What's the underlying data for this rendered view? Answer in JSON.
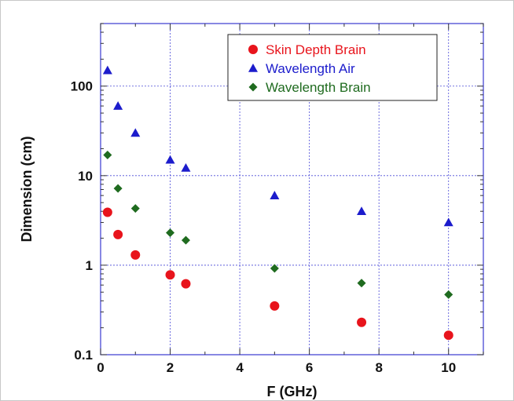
{
  "chart_data": {
    "type": "scatter",
    "title": "",
    "xlabel": "F (GHz)",
    "ylabel": "Dimension (cm)",
    "xlim": [
      0,
      11
    ],
    "ylim": [
      0.1,
      500
    ],
    "yscale": "log",
    "x_ticks": [
      0,
      2,
      4,
      6,
      8,
      10
    ],
    "x_tick_labels": [
      "0",
      "2",
      "4",
      "6",
      "8",
      "10"
    ],
    "y_ticks": [
      0.1,
      1,
      10,
      100
    ],
    "y_tick_labels": [
      "0.1",
      "1",
      "10",
      "100"
    ],
    "grid": true,
    "legend_position": "top-right",
    "series": [
      {
        "name": "Skin Depth Brain",
        "marker": "circle",
        "color": "#e8141c",
        "x": [
          0.2,
          0.5,
          1,
          2,
          2.45,
          5,
          7.5,
          10
        ],
        "y": [
          3.9,
          2.2,
          1.3,
          0.78,
          0.62,
          0.35,
          0.23,
          0.165
        ]
      },
      {
        "name": "Wavelength Air",
        "marker": "triangle",
        "color": "#1c1ccc",
        "x": [
          0.2,
          0.5,
          1,
          2,
          2.45,
          5,
          7.5,
          10
        ],
        "y": [
          150,
          60,
          30,
          15,
          12.2,
          6,
          4,
          3
        ]
      },
      {
        "name": "Wavelength Brain",
        "marker": "diamond",
        "color": "#1f6b1f",
        "x": [
          0.2,
          0.5,
          1,
          2,
          2.45,
          5,
          7.5,
          10
        ],
        "y": [
          17,
          7.2,
          4.3,
          2.3,
          1.9,
          0.92,
          0.63,
          0.47
        ]
      }
    ]
  }
}
